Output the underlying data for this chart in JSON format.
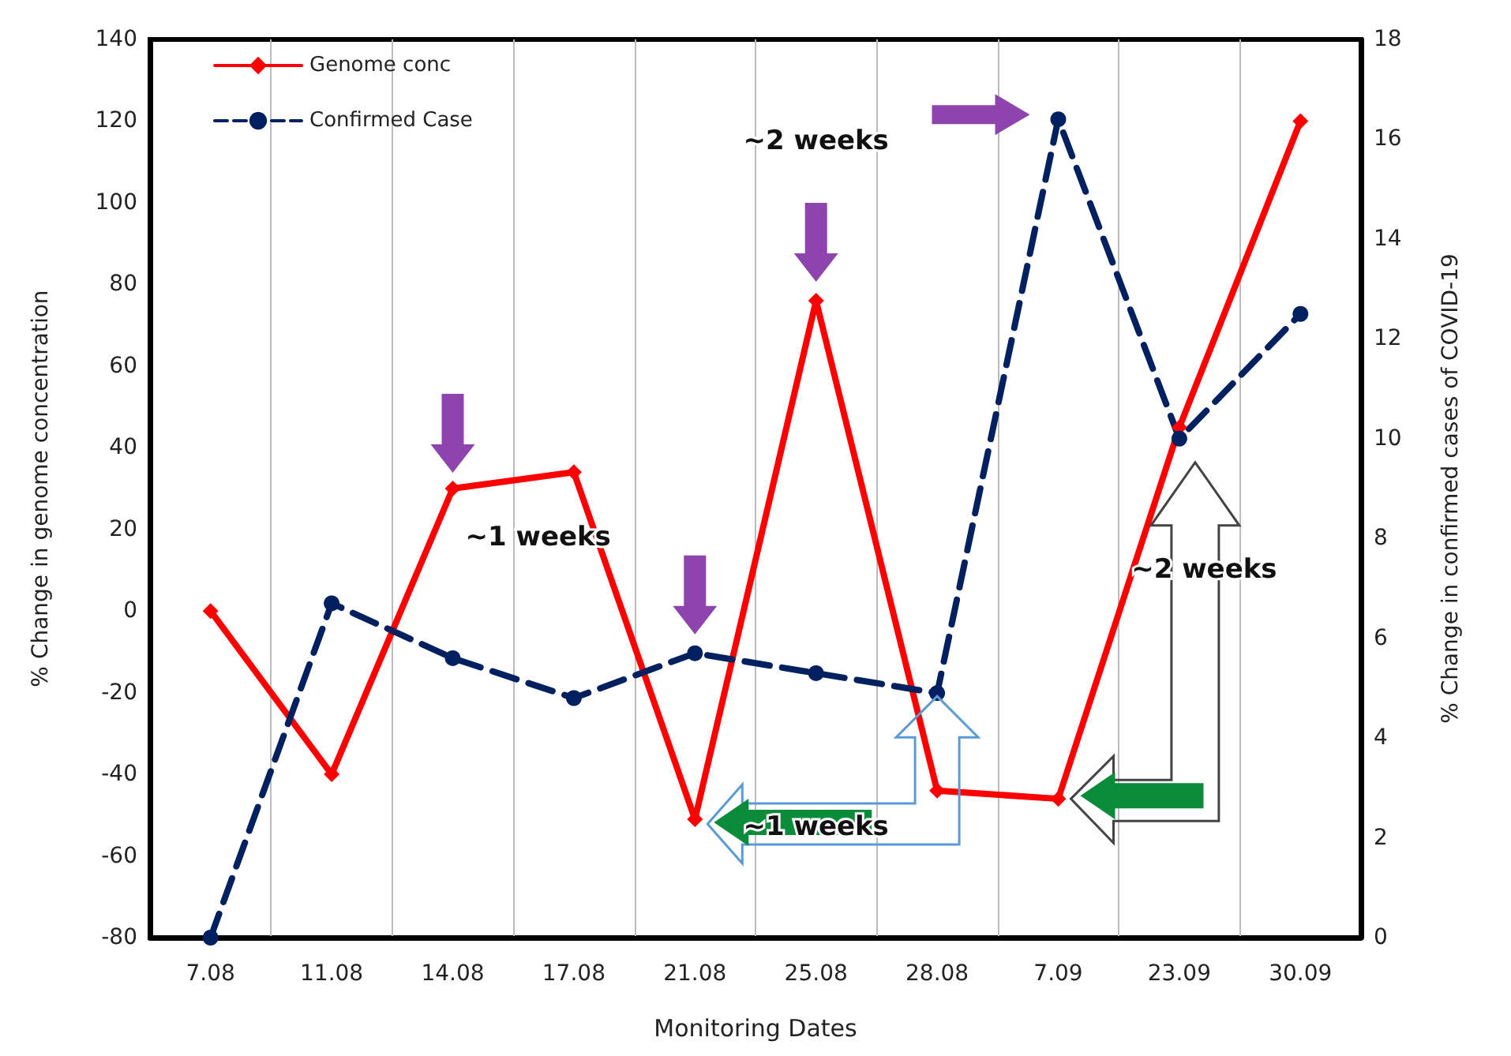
{
  "chart_data": {
    "type": "line",
    "xlabel": "Monitoring Dates",
    "ylabel": "% Change in genome concentration",
    "y2label": "% Change in confirmed cases of COVID-19",
    "categories": [
      "7.08",
      "11.08",
      "14.08",
      "17.08",
      "21.08",
      "25.08",
      "28.08",
      "7.09",
      "23.09",
      "30.09"
    ],
    "series": [
      {
        "name": "Genome conc",
        "color": "#ff0000",
        "marker": "diamond",
        "line_style": "solid",
        "values": [
          0,
          -40,
          30,
          34,
          -51,
          76,
          -44,
          -46,
          45,
          120
        ]
      },
      {
        "name": "Confirmed Case",
        "color": "#002060",
        "marker": "circle",
        "line_style": "dashed",
        "axis": "y2",
        "values": [
          0,
          6.7,
          5.6,
          4.8,
          5.7,
          5.3,
          4.9,
          16.4,
          10,
          12.5
        ]
      }
    ],
    "ylim": [
      -80,
      140
    ],
    "yticks": [
      -80,
      -60,
      -40,
      -20,
      0,
      20,
      40,
      60,
      80,
      100,
      120,
      140
    ],
    "y2lim": [
      0,
      18
    ],
    "y2ticks": [
      0,
      2,
      4,
      6,
      8,
      10,
      12,
      14,
      16,
      18
    ],
    "grid": "x",
    "legend": "top left",
    "annotations": [
      "~1 weeks",
      "~2 weeks",
      "~1 weeks",
      "~2 weeks"
    ]
  }
}
